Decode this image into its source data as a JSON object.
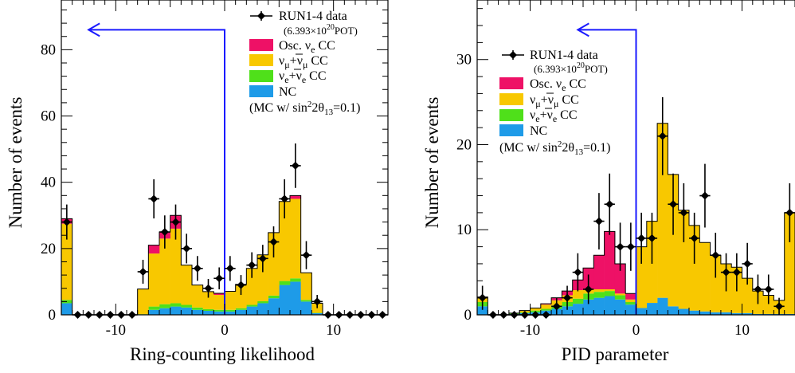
{
  "colors": {
    "nc": "#1e9be8",
    "nue": "#4fe01a",
    "numu": "#f8c800",
    "osc": "#ee1166",
    "cut_line": "#1a1aff",
    "data": "#000000"
  },
  "legend": {
    "data": "RUN1-4 data",
    "pot_prefix": "(6.393×10",
    "pot_exp": "20",
    "pot_suffix": "POT)",
    "osc": "Osc. ν",
    "osc_sub": "e",
    "osc_tail": " CC",
    "numu": "ν",
    "numu_sub": "μ",
    "numu_mid": "+ν",
    "numu_sub2": "μ",
    "numu_tail": " CC",
    "nue": "ν",
    "nue_sub": "e",
    "nue_mid": "+ν",
    "nue_sub2": "e",
    "nue_tail": " CC",
    "nc": "NC",
    "mc_prefix": "(MC w/ sin",
    "mc_sup": "2",
    "mc_mid": "2θ",
    "mc_sub": "13",
    "mc_suffix": "=0.1)"
  },
  "chart_data": [
    {
      "type": "bar",
      "stacked": true,
      "xlabel": "Ring-counting likelihood",
      "ylabel": "Number of events",
      "xlim": [
        -15,
        15
      ],
      "ylim": [
        0,
        95
      ],
      "xticks": [
        -10,
        0,
        10
      ],
      "yticks": [
        0,
        20,
        40,
        60,
        80
      ],
      "bin_width": 1,
      "bin_centers": [
        -14.5,
        -13.5,
        -12.5,
        -11.5,
        -10.5,
        -9.5,
        -8.5,
        -7.5,
        -6.5,
        -5.5,
        -4.5,
        -3.5,
        -2.5,
        -1.5,
        -0.5,
        0.5,
        1.5,
        2.5,
        3.5,
        4.5,
        5.5,
        6.5,
        7.5,
        8.5,
        9.5,
        10.5,
        11.5,
        12.5,
        13.5,
        14.5
      ],
      "series": [
        {
          "key": "nc",
          "name": "NC",
          "values": [
            3.5,
            0,
            0,
            0,
            0,
            0,
            0,
            0,
            1.5,
            2,
            2.5,
            2.2,
            1.5,
            1.2,
            1,
            1,
            1.5,
            2.5,
            3.5,
            5,
            9,
            10,
            4,
            0.5,
            0,
            0,
            0,
            0,
            0,
            0
          ]
        },
        {
          "key": "nue",
          "name": "ν_e+ν̄_e CC",
          "values": [
            1,
            0,
            0,
            0,
            0,
            0,
            0,
            0.2,
            1,
            1.2,
            1,
            0.8,
            0.7,
            0.5,
            0.5,
            0.5,
            0.5,
            0.5,
            0.6,
            0.8,
            1.2,
            1,
            0.5,
            0.1,
            0,
            0,
            0,
            0,
            0,
            0
          ]
        },
        {
          "key": "numu",
          "name": "ν_μ+ν̄_μ CC",
          "values": [
            23,
            0,
            0,
            0,
            0,
            0,
            0,
            7.6,
            16,
            19.8,
            22.5,
            12,
            6.8,
            5.3,
            4.5,
            5.6,
            7.2,
            11,
            14,
            19,
            24,
            24,
            8.2,
            2.9,
            0,
            0,
            0,
            0,
            0,
            0
          ]
        },
        {
          "key": "osc",
          "name": "Osc. ν_e CC",
          "values": [
            1.5,
            0,
            0,
            0,
            0,
            0,
            0,
            0,
            2.5,
            2,
            4,
            0,
            0,
            0,
            0.5,
            0,
            0,
            0,
            0,
            0,
            0,
            1,
            0,
            0,
            0,
            0,
            0,
            0,
            0,
            0
          ]
        }
      ],
      "data_points": {
        "name": "RUN1-4 data",
        "x": [
          -14.5,
          -13.5,
          -12.5,
          -11.5,
          -10.5,
          -9.5,
          -8.5,
          -7.5,
          -6.5,
          -5.5,
          -4.5,
          -3.5,
          -2.5,
          -1.5,
          -0.5,
          0.5,
          1.5,
          2.5,
          3.5,
          4.5,
          5.5,
          6.5,
          7.5,
          8.5,
          9.5,
          10.5,
          11.5,
          12.5,
          13.5,
          14.5
        ],
        "y": [
          28,
          0,
          0,
          0,
          0,
          0,
          0,
          13,
          35,
          25,
          28,
          20,
          14,
          8,
          11,
          14,
          9,
          15,
          17,
          22,
          35,
          45,
          18,
          4,
          0,
          0,
          0,
          0,
          0,
          0
        ]
      },
      "cut_value": 0,
      "cut_arrow_to": -12.5,
      "cut_arrow_y": 86
    },
    {
      "type": "bar",
      "stacked": true,
      "xlabel": "PID parameter",
      "ylabel": "Number of events",
      "xlim": [
        -15,
        15
      ],
      "ylim": [
        0,
        37
      ],
      "xticks": [
        -10,
        0,
        10
      ],
      "yticks": [
        0,
        10,
        20,
        30
      ],
      "bin_width": 1,
      "bin_centers": [
        -14.5,
        -13.5,
        -12.5,
        -11.5,
        -10.5,
        -9.5,
        -8.5,
        -7.5,
        -6.5,
        -5.5,
        -4.5,
        -3.5,
        -2.5,
        -1.5,
        -0.5,
        0.5,
        1.5,
        2.5,
        3.5,
        4.5,
        5.5,
        6.5,
        7.5,
        8.5,
        9.5,
        10.5,
        11.5,
        12.5,
        13.5,
        14.5
      ],
      "series": [
        {
          "key": "nc",
          "name": "NC",
          "values": [
            1,
            0,
            0,
            0.1,
            0.2,
            0.3,
            0.5,
            0.7,
            1,
            1.3,
            1.8,
            2,
            2.2,
            1.8,
            1.2,
            0.8,
            1.4,
            2,
            1,
            0.7,
            0.5,
            0.4,
            0.3,
            0.3,
            0.2,
            0.2,
            0.1,
            0.1,
            0.1,
            0.1
          ]
        },
        {
          "key": "nue",
          "name": "ν_e+ν̄_e CC",
          "values": [
            0.5,
            0,
            0,
            0.1,
            0.1,
            0.2,
            0.2,
            0.4,
            0.5,
            0.6,
            0.7,
            0.7,
            0.6,
            0.5,
            0.3,
            0,
            0,
            0,
            0,
            0,
            0,
            0,
            0,
            0,
            0,
            0,
            0,
            0,
            0,
            0
          ]
        },
        {
          "key": "numu",
          "name": "ν_μ+ν̄_μ CC",
          "values": [
            0.6,
            0,
            0,
            0,
            0.2,
            0.3,
            0.5,
            0.6,
            0.8,
            1,
            0.5,
            0.3,
            0.2,
            0.2,
            0.3,
            7.2,
            9.6,
            20.5,
            15.5,
            11.6,
            10,
            8.1,
            6.7,
            5.7,
            5.4,
            4.1,
            2.7,
            2.2,
            1.6,
            11.9
          ]
        },
        {
          "key": "osc",
          "name": "Osc. ν_e CC",
          "values": [
            0,
            0,
            0,
            0,
            0,
            0,
            0.1,
            0.3,
            0.5,
            1.2,
            2.5,
            4,
            6.8,
            3.5,
            0.7,
            0,
            0,
            0,
            0,
            0,
            0,
            0,
            0,
            0,
            0,
            0,
            0,
            0,
            0,
            0
          ]
        }
      ],
      "data_points": {
        "name": "RUN1-4 data",
        "x": [
          -14.5,
          -13.5,
          -12.5,
          -11.5,
          -10.5,
          -9.5,
          -8.5,
          -7.5,
          -6.5,
          -5.5,
          -4.5,
          -3.5,
          -2.5,
          -1.5,
          -0.5,
          0.5,
          1.5,
          2.5,
          3.5,
          4.5,
          5.5,
          6.5,
          7.5,
          8.5,
          9.5,
          10.5,
          11.5,
          12.5,
          13.5,
          14.5
        ],
        "y": [
          2,
          0,
          0,
          0,
          0,
          0,
          0,
          1,
          2,
          5,
          3,
          11,
          13,
          8,
          8,
          9,
          9,
          21,
          13,
          12,
          9,
          14,
          7,
          5,
          5,
          6,
          3,
          3,
          1,
          12
        ]
      },
      "cut_value": 0,
      "cut_arrow_to": -5.5,
      "cut_arrow_y": 33.5
    }
  ]
}
